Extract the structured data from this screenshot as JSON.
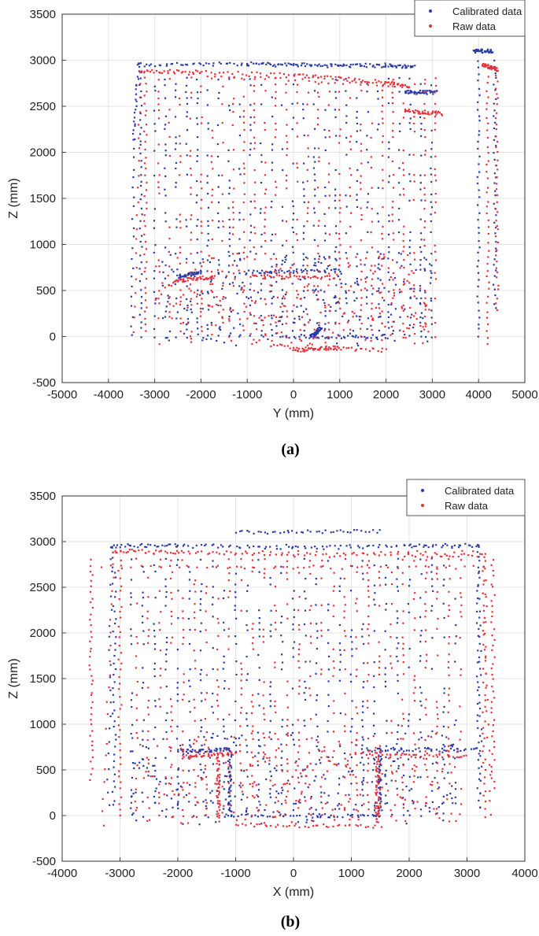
{
  "chart_data": [
    {
      "type": "scatter",
      "caption": "(a)",
      "xlabel": "Y (mm)",
      "ylabel": "Z (mm)",
      "xlim": [
        -5000,
        5000
      ],
      "ylim": [
        -500,
        3500
      ],
      "xticks": [
        "-5000",
        "-4000",
        "-3000",
        "-2000",
        "-1000",
        "0",
        "1000",
        "2000",
        "3000",
        "4000",
        "5000"
      ],
      "yticks": [
        "-500",
        "0",
        "500",
        "1000",
        "1500",
        "2000",
        "2500",
        "3000",
        "3500"
      ],
      "grid": true,
      "legend_position": "top-right",
      "series": [
        {
          "name": "Calibrated data",
          "color": "#2b3aa8",
          "outline": [
            [
              -3500,
              0
            ],
            [
              -3450,
              2150
            ],
            [
              -3350,
              2950
            ],
            [
              -1000,
              2960
            ],
            [
              0,
              2950
            ],
            [
              1000,
              2940
            ],
            [
              2000,
              2940
            ],
            [
              2600,
              2930
            ]
          ],
          "segments": [
            [
              [
                -3300,
                0
              ],
              [
                -3300,
                2950
              ]
            ],
            [
              [
                -3350,
                2950
              ],
              [
                2600,
                2950
              ]
            ],
            [
              [
                2400,
                2650
              ],
              [
                3100,
                2650
              ]
            ],
            [
              [
                -1000,
                700
              ],
              [
                1000,
                720
              ]
            ],
            [
              [
                -300,
                0
              ],
              [
                2000,
                0
              ]
            ],
            [
              [
                3900,
                3100
              ],
              [
                4300,
                3100
              ]
            ],
            [
              [
                4000,
                0
              ],
              [
                4000,
                3000
              ]
            ],
            [
              [
                4350,
                300
              ],
              [
                4350,
                3000
              ]
            ],
            [
              [
                -2500,
                650
              ],
              [
                -2000,
                700
              ]
            ],
            [
              [
                400,
                0
              ],
              [
                600,
                100
              ]
            ]
          ]
        },
        {
          "name": "Raw data",
          "color": "#e8303a",
          "outline": [
            [
              -3450,
              50
            ],
            [
              -3300,
              2880
            ],
            [
              -2000,
              2870
            ],
            [
              0,
              2840
            ],
            [
              1000,
              2800
            ],
            [
              2000,
              2760
            ],
            [
              2500,
              2720
            ]
          ],
          "segments": [
            [
              [
                -3200,
                50
              ],
              [
                -3200,
                2880
              ]
            ],
            [
              [
                -3300,
                2880
              ],
              [
                2500,
                2720
              ]
            ],
            [
              [
                2400,
                2450
              ],
              [
                3200,
                2420
              ]
            ],
            [
              [
                -900,
                650
              ],
              [
                900,
                640
              ]
            ],
            [
              [
                -500,
                -100
              ],
              [
                2000,
                -150
              ]
            ],
            [
              [
                4100,
                2950
              ],
              [
                4400,
                2900
              ]
            ],
            [
              [
                4200,
                -100
              ],
              [
                4200,
                2900
              ]
            ],
            [
              [
                4400,
                300
              ],
              [
                4400,
                2900
              ]
            ],
            [
              [
                -2600,
                600
              ],
              [
                -1700,
                650
              ]
            ],
            [
              [
                0,
                -150
              ],
              [
                1000,
                -120
              ]
            ]
          ]
        }
      ]
    },
    {
      "type": "scatter",
      "caption": "(b)",
      "xlabel": "X (mm)",
      "ylabel": "Z (mm)",
      "xlim": [
        -4000,
        4000
      ],
      "ylim": [
        -500,
        3500
      ],
      "xticks": [
        "-4000",
        "-3000",
        "-2000",
        "-1000",
        "0",
        "1000",
        "2000",
        "3000",
        "4000"
      ],
      "yticks": [
        "-500",
        "0",
        "500",
        "1000",
        "1500",
        "2000",
        "2500",
        "3000",
        "3500"
      ],
      "grid": true,
      "legend_position": "top-right",
      "series": [
        {
          "name": "Calibrated data",
          "color": "#2b3aa8",
          "outline": [
            [
              -3200,
              100
            ],
            [
              -3150,
              2950
            ],
            [
              -2000,
              2960
            ],
            [
              0,
              2930
            ],
            [
              2000,
              2950
            ],
            [
              3200,
              2960
            ],
            [
              3250,
              100
            ]
          ],
          "segments": [
            [
              [
                -3150,
                2950
              ],
              [
                3200,
                2950
              ]
            ],
            [
              [
                -3100,
                100
              ],
              [
                -3100,
                2950
              ]
            ],
            [
              [
                3200,
                100
              ],
              [
                3200,
                2950
              ]
            ],
            [
              [
                -2000,
                700
              ],
              [
                -1100,
                720
              ]
            ],
            [
              [
                1200,
                720
              ],
              [
                3200,
                720
              ]
            ],
            [
              [
                -1100,
                0
              ],
              [
                1500,
                0
              ]
            ],
            [
              [
                -1100,
                0
              ],
              [
                -1100,
                720
              ]
            ],
            [
              [
                1500,
                0
              ],
              [
                1500,
                720
              ]
            ],
            [
              [
                -1000,
                3100
              ],
              [
                1500,
                3110
              ]
            ]
          ]
        },
        {
          "name": "Raw data",
          "color": "#e8303a",
          "outline": [
            [
              -3300,
              -100
            ],
            [
              -3100,
              2900
            ],
            [
              -2000,
              2880
            ],
            [
              0,
              2850
            ],
            [
              2000,
              2850
            ],
            [
              3300,
              2850
            ],
            [
              3400,
              0
            ]
          ],
          "segments": [
            [
              [
                -3050,
                2880
              ],
              [
                3250,
                2880
              ]
            ],
            [
              [
                -3300,
                2720
              ],
              [
                3300,
                2720
              ]
            ],
            [
              [
                -3000,
                0
              ],
              [
                -3000,
                2880
              ]
            ],
            [
              [
                3300,
                0
              ],
              [
                3300,
                2800
              ]
            ],
            [
              [
                -1900,
                650
              ],
              [
                -1000,
                680
              ]
            ],
            [
              [
                1000,
                680
              ],
              [
                3000,
                650
              ]
            ],
            [
              [
                -1000,
                -100
              ],
              [
                1500,
                -120
              ]
            ],
            [
              [
                -1300,
                -50
              ],
              [
                -1300,
                650
              ]
            ],
            [
              [
                1450,
                -80
              ],
              [
                1450,
                650
              ]
            ],
            [
              [
                -3500,
                400
              ],
              [
                -3500,
                2800
              ]
            ],
            [
              [
                3450,
                300
              ],
              [
                3450,
                2800
              ]
            ]
          ]
        }
      ]
    }
  ]
}
